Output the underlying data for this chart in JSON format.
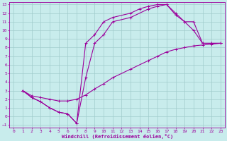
{
  "xlabel": "Windchill (Refroidissement éolien,°C)",
  "bg_color": "#c8ecec",
  "line_color": "#9b009b",
  "grid_color": "#a0cccc",
  "xlim": [
    -0.5,
    23.5
  ],
  "ylim": [
    -1.3,
    13.3
  ],
  "xticks": [
    0,
    1,
    2,
    3,
    4,
    5,
    6,
    7,
    8,
    9,
    10,
    11,
    12,
    13,
    14,
    15,
    16,
    17,
    18,
    19,
    20,
    21,
    22,
    23
  ],
  "yticks": [
    -1,
    0,
    1,
    2,
    3,
    4,
    5,
    6,
    7,
    8,
    9,
    10,
    11,
    12,
    13
  ],
  "curve1_x": [
    1,
    2,
    3,
    4,
    5,
    6,
    7,
    8,
    9,
    10,
    11,
    13,
    14,
    15,
    16,
    17,
    18,
    19,
    20,
    21,
    22,
    23
  ],
  "curve1_y": [
    3,
    2.2,
    1.7,
    1.0,
    0.5,
    0.3,
    -0.8,
    8.5,
    9.5,
    11.0,
    11.5,
    12.0,
    12.5,
    12.8,
    13.0,
    13.0,
    12.0,
    11.0,
    10.0,
    8.5,
    8.5,
    8.5
  ],
  "curve2_x": [
    1,
    2,
    3,
    4,
    5,
    6,
    7,
    8,
    9,
    10,
    11,
    13,
    15,
    16,
    17,
    18,
    19,
    20,
    21,
    22,
    23
  ],
  "curve2_y": [
    3,
    2.2,
    1.7,
    1.0,
    0.5,
    0.3,
    -0.8,
    4.5,
    8.5,
    9.5,
    11.0,
    11.5,
    12.5,
    12.8,
    13.0,
    11.8,
    11.0,
    11.0,
    8.5,
    8.5,
    8.5
  ],
  "curve3_x": [
    1,
    2,
    3,
    4,
    5,
    6,
    7,
    8,
    9,
    10,
    11,
    13,
    15,
    16,
    17,
    18,
    19,
    20,
    21,
    22,
    23
  ],
  "curve3_y": [
    3,
    2.4,
    2.2,
    2.0,
    1.8,
    1.8,
    2.0,
    2.5,
    3.2,
    3.8,
    4.5,
    5.5,
    6.5,
    7.0,
    7.5,
    7.8,
    8.0,
    8.2,
    8.3,
    8.4,
    8.5
  ]
}
